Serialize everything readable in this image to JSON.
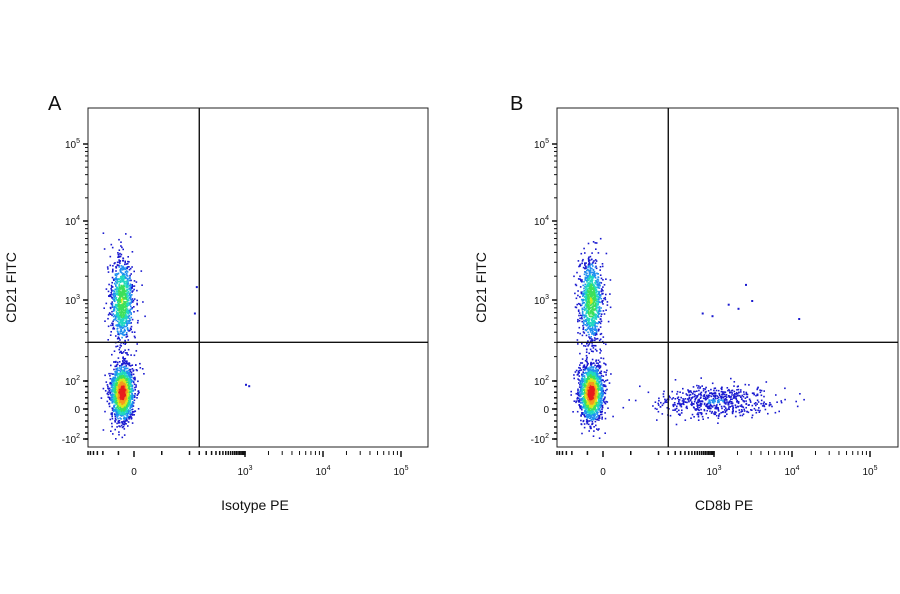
{
  "chart_data": [
    {
      "type": "scatter",
      "panel_label": "A",
      "xlabel": "Isotype PE",
      "ylabel": "CD21 FITC",
      "x_scale": "biexponential",
      "y_scale": "biexponential",
      "xlim": [
        -300,
        200000
      ],
      "ylim": [
        -150,
        300000
      ],
      "x_ticks": [
        {
          "value": 0,
          "base": "0",
          "exp": ""
        },
        {
          "value": 1000,
          "base": "10",
          "exp": "3"
        },
        {
          "value": 10000,
          "base": "10",
          "exp": "4"
        },
        {
          "value": 100000,
          "base": "10",
          "exp": "5"
        }
      ],
      "y_ticks": [
        {
          "value": -100,
          "base": "-10",
          "exp": "2"
        },
        {
          "value": 0,
          "base": "0",
          "exp": ""
        },
        {
          "value": 100,
          "base": "10",
          "exp": "2"
        },
        {
          "value": 1000,
          "base": "10",
          "exp": "3"
        },
        {
          "value": 10000,
          "base": "10",
          "exp": "4"
        },
        {
          "value": 100000,
          "base": "10",
          "exp": "5"
        }
      ],
      "quadrant_gate": {
        "x": 150,
        "y": 300
      },
      "populations": [
        {
          "x_center": -40,
          "y_center": 60,
          "count": 1500,
          "spread": "dense"
        },
        {
          "x_center": -40,
          "y_center": 1000,
          "count": 900,
          "spread": "medium"
        }
      ],
      "outliers": [
        [
          1000,
          90
        ],
        [
          1100,
          85
        ],
        [
          120,
          700
        ],
        [
          130,
          1500
        ]
      ],
      "density_colormap": [
        "#1a1ad0",
        "#1f8ff0",
        "#20d8c0",
        "#3de05a",
        "#d8e81e",
        "#f59a1c",
        "#e81c1c"
      ]
    },
    {
      "type": "scatter",
      "panel_label": "B",
      "xlabel": "CD8b PE",
      "ylabel": "CD21 FITC",
      "x_scale": "biexponential",
      "y_scale": "biexponential",
      "xlim": [
        -300,
        200000
      ],
      "ylim": [
        -150,
        300000
      ],
      "x_ticks": [
        {
          "value": 0,
          "base": "0",
          "exp": ""
        },
        {
          "value": 1000,
          "base": "10",
          "exp": "3"
        },
        {
          "value": 10000,
          "base": "10",
          "exp": "4"
        },
        {
          "value": 100000,
          "base": "10",
          "exp": "5"
        }
      ],
      "y_ticks": [
        {
          "value": -100,
          "base": "-10",
          "exp": "2"
        },
        {
          "value": 0,
          "base": "0",
          "exp": ""
        },
        {
          "value": 100,
          "base": "10",
          "exp": "2"
        },
        {
          "value": 1000,
          "base": "10",
          "exp": "3"
        },
        {
          "value": 10000,
          "base": "10",
          "exp": "4"
        },
        {
          "value": 100000,
          "base": "10",
          "exp": "5"
        }
      ],
      "quadrant_gate": {
        "x": 150,
        "y": 300
      },
      "populations": [
        {
          "x_center": -40,
          "y_center": 60,
          "count": 1500,
          "spread": "dense"
        },
        {
          "x_center": -40,
          "y_center": 1000,
          "count": 900,
          "spread": "medium"
        },
        {
          "x_center": 1000,
          "y_center": 30,
          "count": 600,
          "spread": "horizontal"
        }
      ],
      "outliers": [
        [
          1500,
          900
        ],
        [
          2500,
          1600
        ],
        [
          12000,
          600
        ],
        [
          3000,
          1000
        ],
        [
          600,
          700
        ],
        [
          900,
          650
        ],
        [
          2000,
          800
        ]
      ],
      "density_colormap": [
        "#1a1ad0",
        "#1f8ff0",
        "#20d8c0",
        "#3de05a",
        "#d8e81e",
        "#f59a1c",
        "#e81c1c"
      ]
    }
  ]
}
